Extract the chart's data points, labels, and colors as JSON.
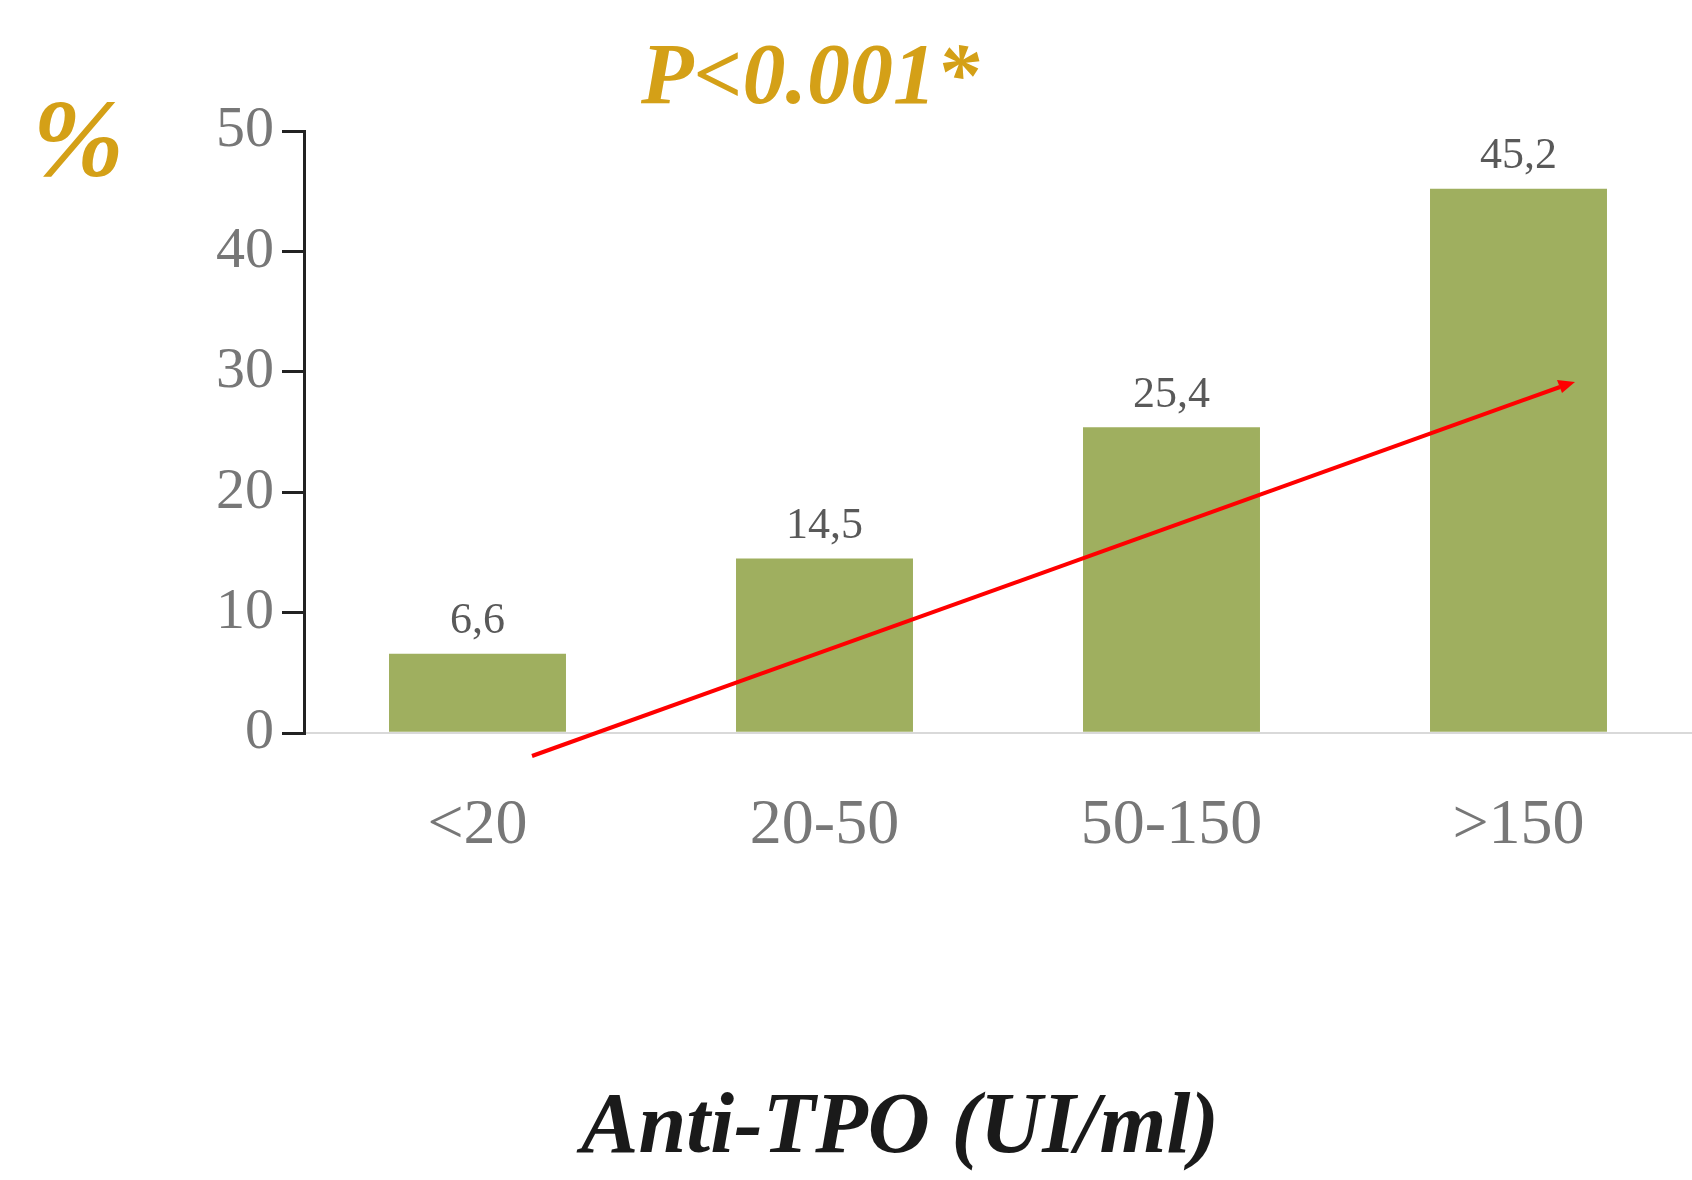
{
  "chart_data": {
    "type": "bar",
    "title": "P<0.001*",
    "ylabel": "%",
    "xlabel": "Anti-TPO (UI/ml)",
    "categories": [
      "<20",
      "20-50",
      "50-150",
      ">150"
    ],
    "values": [
      6.6,
      14.5,
      25.4,
      45.2
    ],
    "value_labels": [
      "6,6",
      "14,5",
      "25,4",
      "45,2"
    ],
    "color": "#9faf5f",
    "ylim": [
      0,
      50
    ],
    "yticks": [
      0,
      10,
      20,
      30,
      40,
      50
    ],
    "grid": false,
    "legend": false
  }
}
